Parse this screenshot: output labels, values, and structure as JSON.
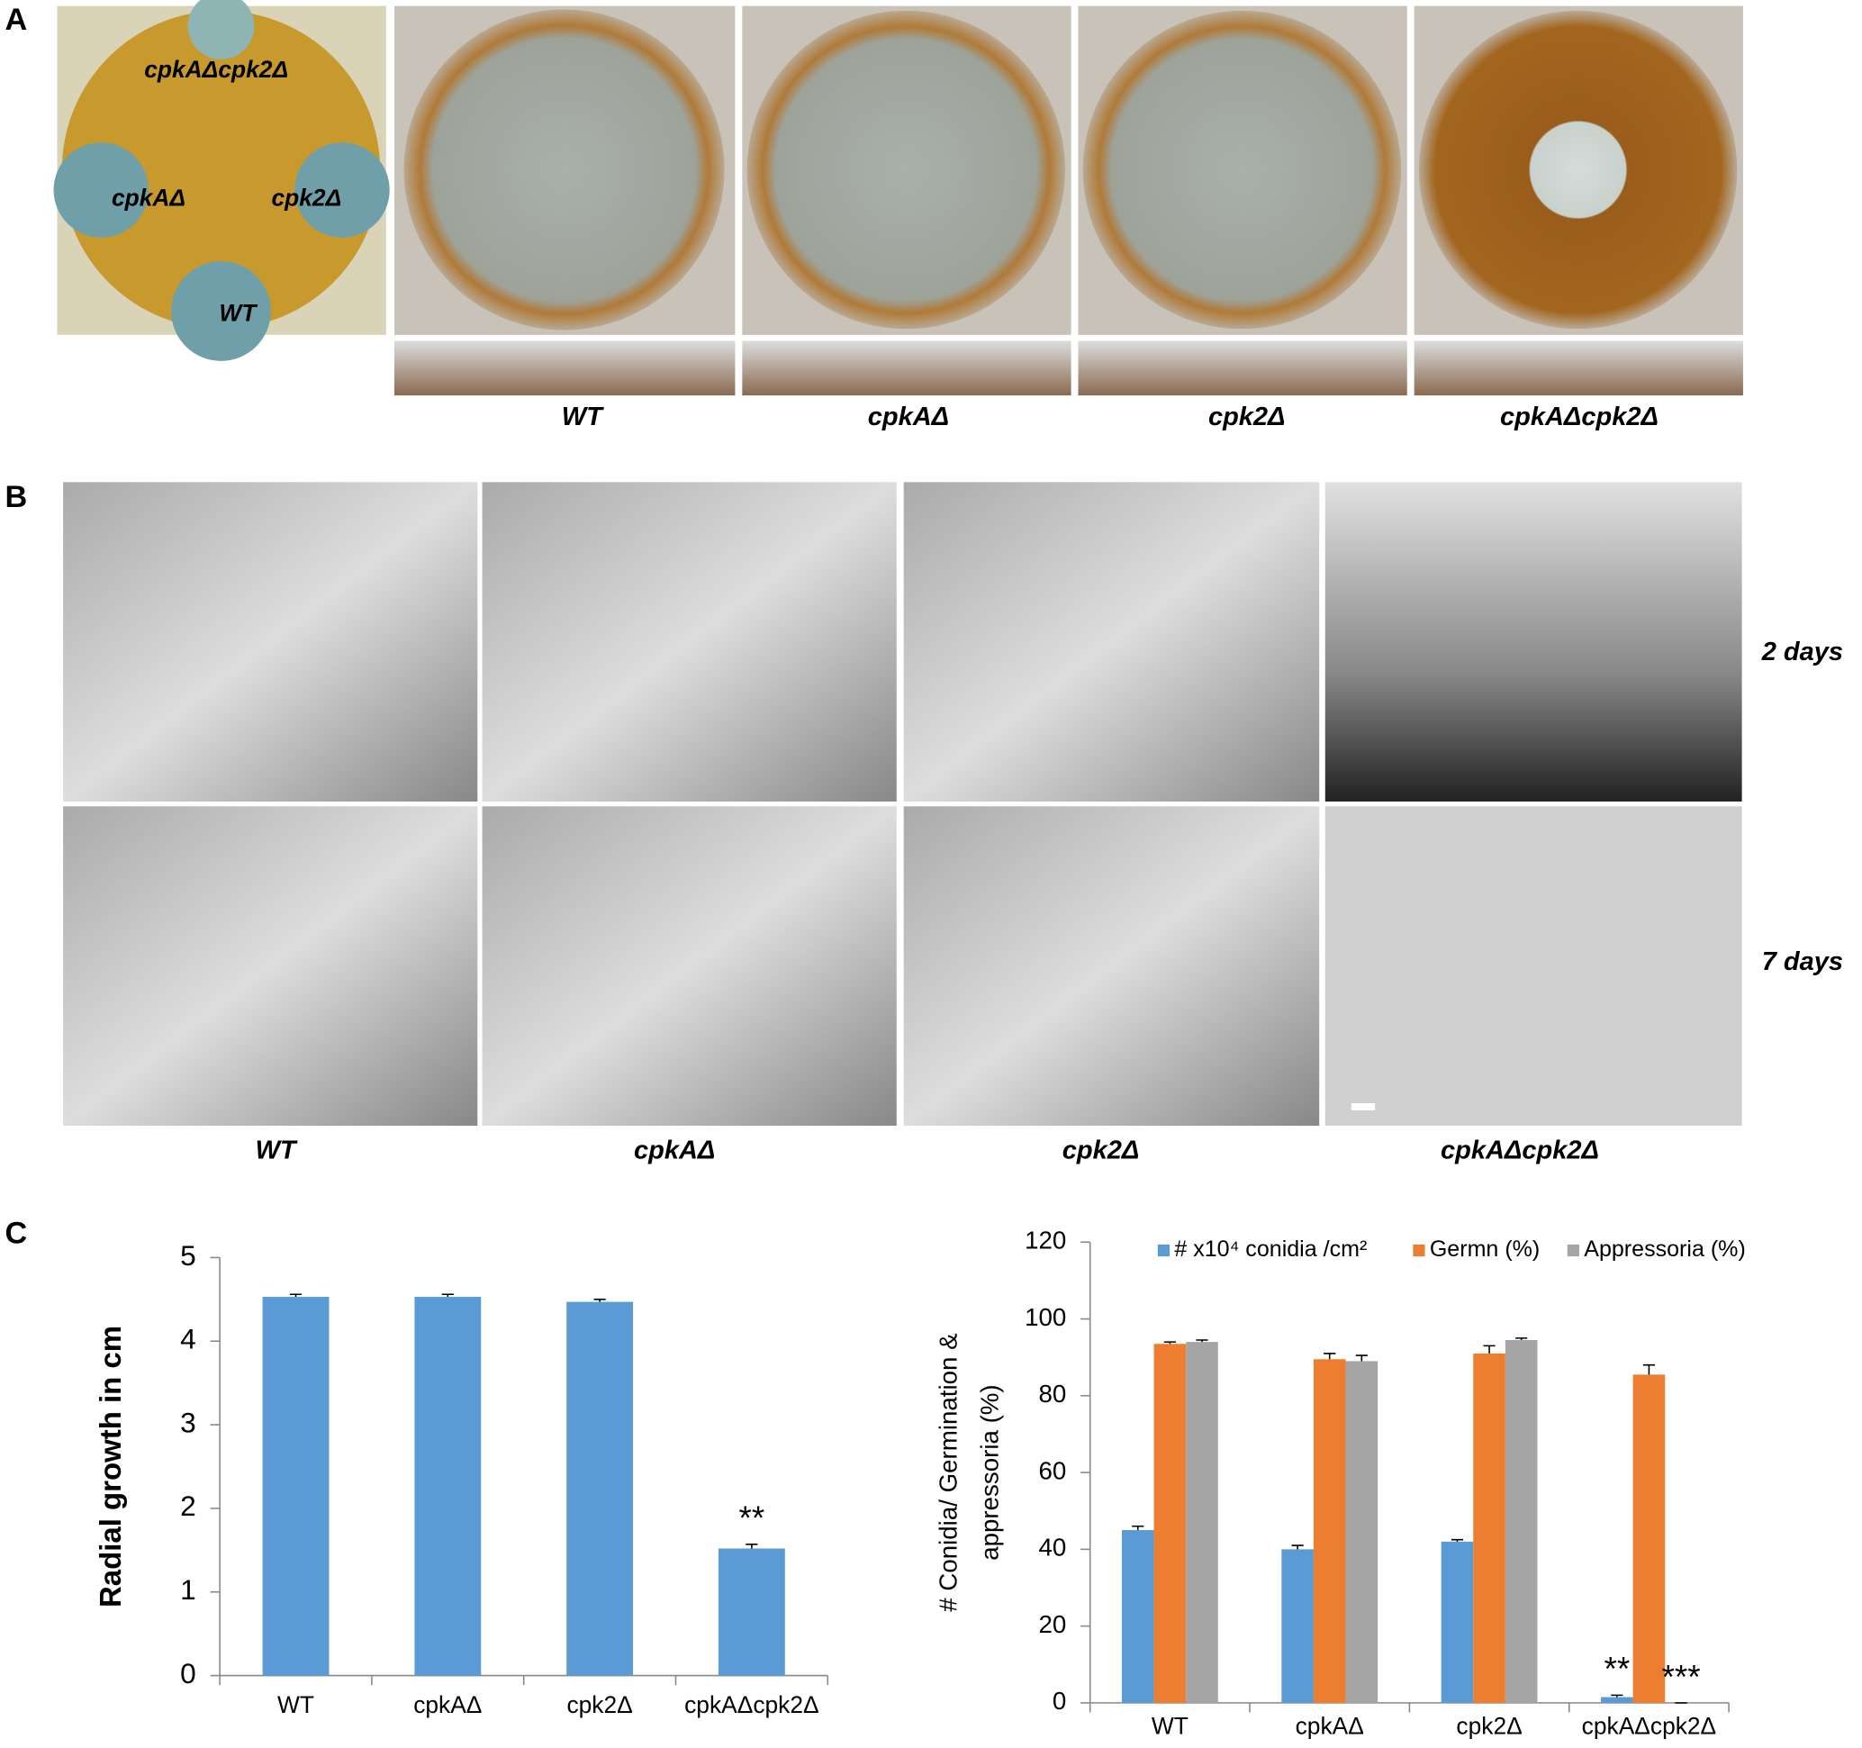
{
  "panel_labels": [
    "A",
    "B",
    "C"
  ],
  "panel_a": {
    "plate_labels": [
      "cpkAΔcpk2Δ",
      "cpkAΔ",
      "cpk2Δ",
      "WT"
    ],
    "columns": [
      "WT",
      "cpkAΔ",
      "cpk2Δ",
      "cpkAΔcpk2Δ"
    ]
  },
  "panel_b": {
    "rows": [
      "2 days",
      "7 days"
    ],
    "columns": [
      "WT",
      "cpkAΔ",
      "cpk2Δ",
      "cpkAΔcpk2Δ"
    ]
  },
  "chart_data": [
    {
      "type": "bar",
      "ylabel": [
        "Radial growth in cm"
      ],
      "categories": [
        "WT",
        "cpkAΔ",
        "cpk2Δ",
        "cpkAΔcpk2Δ"
      ],
      "series": [
        {
          "color": "#5b9bd5",
          "values": [
            4.53,
            4.53,
            4.47,
            1.52
          ],
          "errors": [
            0.03,
            0.03,
            0.03,
            0.05
          ]
        }
      ],
      "ylim": [
        0,
        5
      ],
      "yticks": [
        0,
        1,
        2,
        3,
        4,
        5
      ],
      "annotations": [
        "**"
      ]
    },
    {
      "type": "bar",
      "ylabel": [
        "# Conidia/ Germination &",
        "appressoria (%)"
      ],
      "categories": [
        "WT",
        "cpkAΔ",
        "cpk2Δ",
        "cpkAΔcpk2Δ"
      ],
      "series": [
        {
          "name": "# x10⁴ conidia /cm²",
          "color": "#5b9bd5",
          "values": [
            45,
            40,
            42,
            1.5
          ],
          "errors": [
            1,
            1,
            0.5,
            0.5
          ]
        },
        {
          "name": "Germn (%)",
          "color": "#ed7d31",
          "values": [
            93.5,
            89.5,
            91,
            85.5
          ],
          "errors": [
            0.5,
            1.5,
            2,
            2.5
          ]
        },
        {
          "name": "Appressoria (%)",
          "color": "#a5a5a5",
          "values": [
            94,
            89,
            94.5,
            0
          ],
          "errors": [
            0.5,
            1.5,
            0.5,
            0
          ]
        }
      ],
      "ylim": [
        0,
        120
      ],
      "yticks": [
        0,
        20,
        40,
        60,
        80,
        100,
        120
      ],
      "legend": "top",
      "annotations": [
        "**",
        "***"
      ]
    }
  ]
}
